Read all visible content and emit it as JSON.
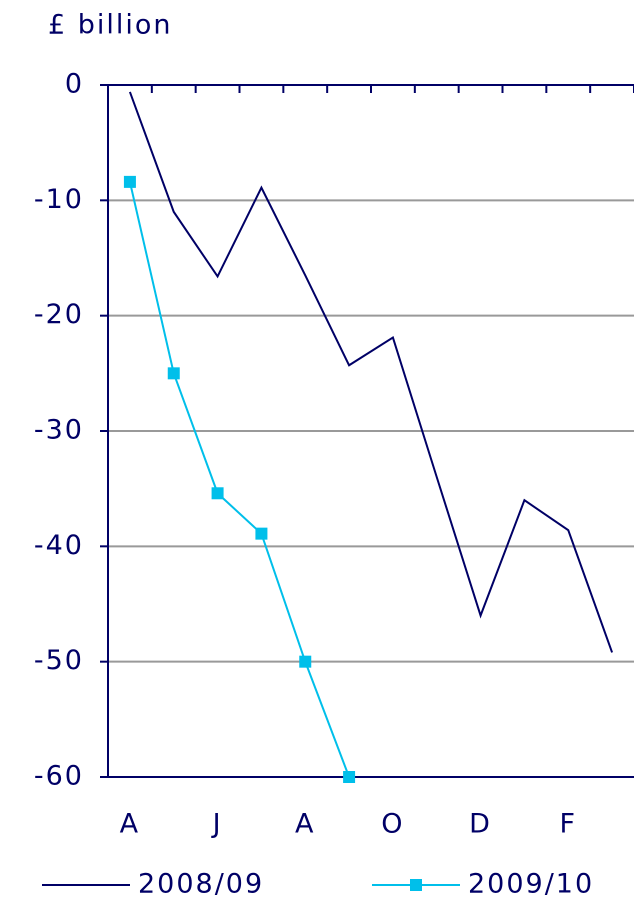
{
  "chart_data": {
    "type": "line",
    "title": "£ billion",
    "categories": [
      "A",
      null,
      "J",
      null,
      "A",
      null,
      "O",
      null,
      "D",
      null,
      "F",
      null
    ],
    "series": [
      {
        "name": "2008/09",
        "color": "#000066",
        "marker": false,
        "values": [
          -0.6,
          -11,
          -16.6,
          -8.9,
          -16.5,
          -24.3,
          -21.9,
          -34,
          -46,
          -36,
          -38.6,
          -49.2
        ]
      },
      {
        "name": "2009/10",
        "color": "#00bfea",
        "marker": true,
        "values": [
          -8.4,
          -25,
          -35.4,
          -38.9,
          -50,
          -60,
          null,
          null,
          null,
          null,
          null,
          null
        ]
      }
    ],
    "ylim": [
      -60,
      0
    ],
    "yticks": [
      0,
      -10,
      -20,
      -30,
      -40,
      -50,
      -60
    ],
    "grid": true,
    "legend": "bottom"
  }
}
